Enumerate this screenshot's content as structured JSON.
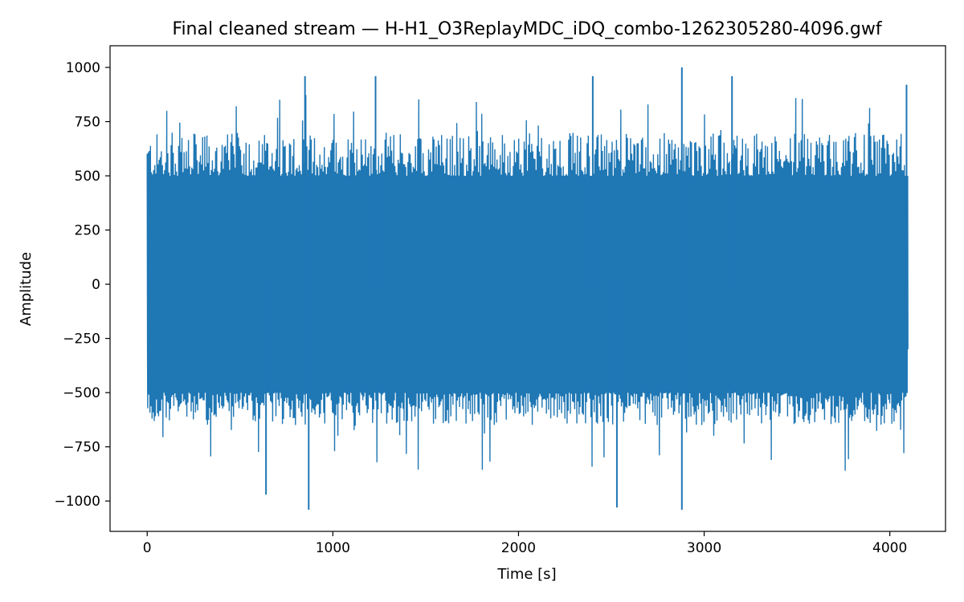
{
  "chart_data": {
    "type": "line",
    "title": "Final cleaned stream — H-H1_O3ReplayMDC_iDQ_combo-1262305280-4096.gwf",
    "xlabel": "Time [s]",
    "ylabel": "Amplitude",
    "xlim": [
      -200,
      4300
    ],
    "ylim": [
      -1140,
      1100
    ],
    "x_ticks": [
      0,
      1000,
      2000,
      3000,
      4000
    ],
    "x_tick_labels": [
      "0",
      "1000",
      "2000",
      "3000",
      "4000"
    ],
    "y_ticks": [
      -1000,
      -750,
      -500,
      -250,
      0,
      250,
      500,
      750,
      1000
    ],
    "y_tick_labels": [
      "−1000",
      "−750",
      "−500",
      "−250",
      "0",
      "250",
      "500",
      "750",
      "1000"
    ],
    "grid": false,
    "legend": "none",
    "series": [
      {
        "color": "#1f77b4",
        "x_range": [
          0,
          4096
        ],
        "envelope": {
          "dense_upper": 500,
          "dense_lower": -500,
          "typical_peak_upper": 700,
          "typical_peak_lower": -650
        },
        "notable_peaks": [
          {
            "x": 850,
            "y": 960
          },
          {
            "x": 1230,
            "y": 960
          },
          {
            "x": 2400,
            "y": 960
          },
          {
            "x": 2880,
            "y": 1000
          },
          {
            "x": 3150,
            "y": 960
          },
          {
            "x": 4090,
            "y": 920
          },
          {
            "x": 870,
            "y": -1040
          },
          {
            "x": 2530,
            "y": -1030
          },
          {
            "x": 2880,
            "y": -1040
          },
          {
            "x": 640,
            "y": -970
          }
        ]
      }
    ]
  }
}
